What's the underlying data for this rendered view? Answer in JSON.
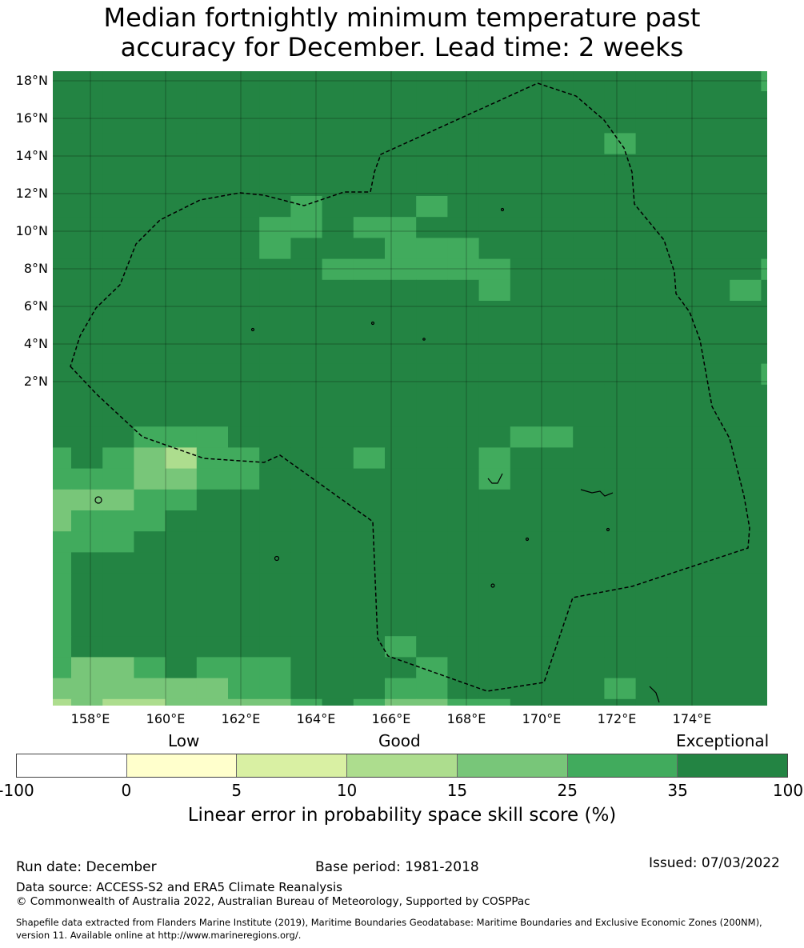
{
  "title_line1": "Median fortnightly minimum temperature past",
  "title_line2": "accuracy for December. Lead time: 2 weeks",
  "map": {
    "lat_labels": [
      "18°N",
      "16°N",
      "14°N",
      "12°N",
      "10°N",
      "8°N",
      "6°N",
      "4°N",
      "2°N"
    ],
    "lon_labels": [
      "158°E",
      "160°E",
      "162°E",
      "164°E",
      "166°E",
      "168°E",
      "170°E",
      "172°E",
      "174°E"
    ],
    "extent": {
      "lon_min": 157.0,
      "lon_max": 176.0,
      "lat_min": 1.4,
      "lat_max": 18.25
    },
    "category_colors": {
      "1": "#ffffcc",
      "2": "#d9f0a3",
      "3": "#addd8e",
      "4": "#78c679",
      "5": "#41ab5d",
      "6": "#238443"
    },
    "grid_rows": [
      "666666666666666666666665",
      "666666666666666666666666",
      "666666666666666666666666",
      "666666666666666666566666",
      "666666666666666666666666",
      "666666666666666666666666",
      "666666665666566666666666",
      "666666655655666666666666",
      "666666656665556666666666",
      "666666666555555666666665",
      "666666666666665666666656",
      "666666666666666666666666",
      "666666666666666666666666",
      "666666666666666666666666",
      "666666666666666666666665",
      "666666666666666666666666",
      "666666666666666666666666",
      "666555666666666556666666",
      "565435566656665666666666",
      "555445566666665666666666",
      "444556666666666666666666",
      "455566666666666666666666",
      "555666666666666666666666",
      "566666666666666666666666",
      "566666666666666666666666",
      "566666666666666666666666",
      "566666666666666666666666",
      "566666666665666666666666",
      "544565556666566666666666",
      "444444556665566666566666",
      "343344445654455666666666"
    ]
  },
  "colorbar": {
    "category_labels": [
      "Low",
      "Good",
      "Exceptional"
    ],
    "tick_labels": [
      "-100",
      "0",
      "5",
      "10",
      "15",
      "25",
      "35",
      "100"
    ],
    "colors": [
      "#ffffff",
      "#ffffcc",
      "#d9f0a3",
      "#addd8e",
      "#78c679",
      "#41ab5d",
      "#238443"
    ],
    "label": "Linear error in probability space skill score (%)"
  },
  "footer": {
    "run_date": "Run date: December",
    "base_period": "Base period: 1981-2018",
    "issued": "Issued: 07/03/2022",
    "data_source": "Data source: ACCESS-S2 and ERA5 Climate Reanalysis",
    "copyright": "© Commonwealth of Australia 2022, Australian Bureau of Meteorology, Supported by COSPPac",
    "shapefile_line1": "Shapefile data extracted from Flanders Marine Institute (2019), Maritime Boundaries Geodatabase: Maritime Boundaries and Exclusive Economic Zones (200NM),",
    "shapefile_line2": "version 11. Available online at http://www.marineregions.org/."
  }
}
